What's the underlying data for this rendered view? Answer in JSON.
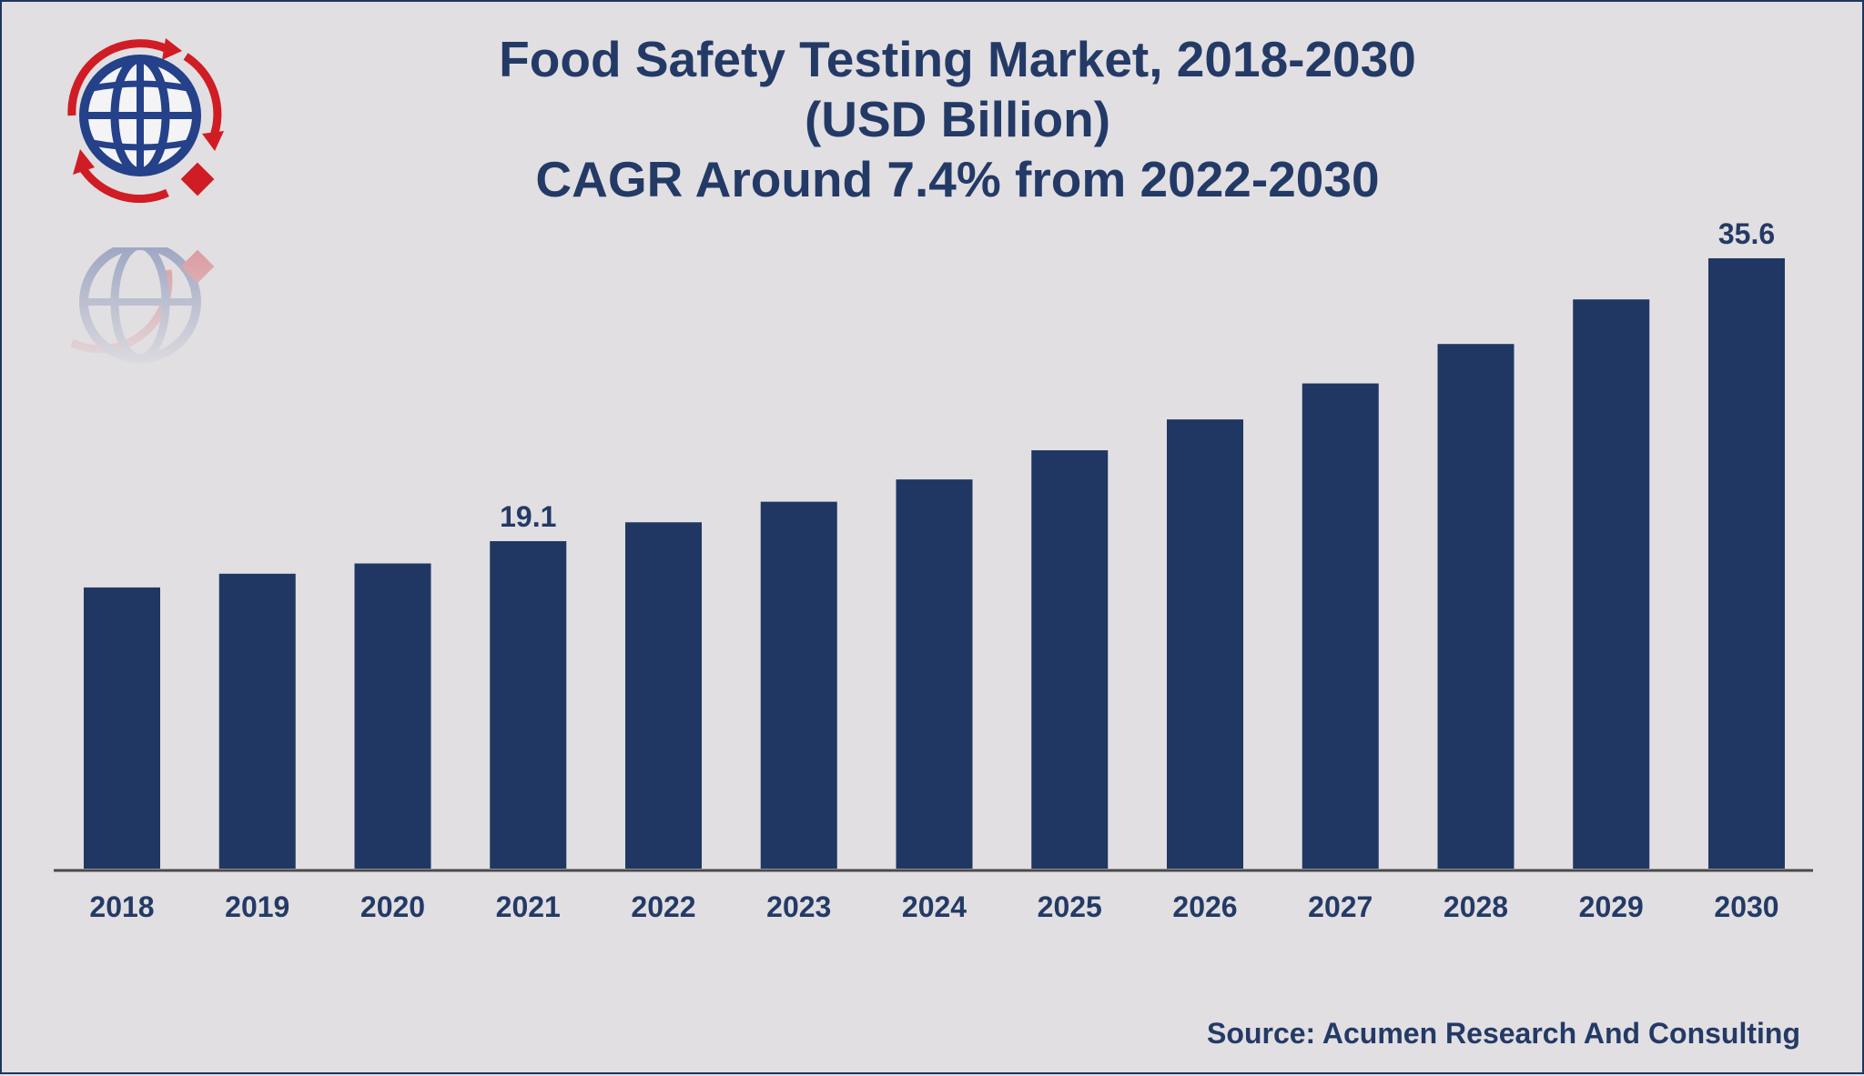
{
  "title": {
    "line1": "Food Safety Testing Market, 2018-2030",
    "line2": "(USD Billion)",
    "line3": "CAGR Around 7.4% from 2022-2030"
  },
  "source": "Source: Acumen Research And Consulting",
  "colors": {
    "bar": "#203763",
    "text": "#243a66",
    "background": "#e1dfe2",
    "logo_red": "#d01c24",
    "logo_blue": "#24418a"
  },
  "logo": {
    "icon": "globe-logo-icon"
  },
  "chart_data": {
    "type": "bar",
    "title": "Food Safety Testing Market, 2018-2030",
    "ylabel": "",
    "xlabel": "",
    "categories": [
      "2018",
      "2019",
      "2020",
      "2021",
      "2022",
      "2023",
      "2024",
      "2025",
      "2026",
      "2027",
      "2028",
      "2029",
      "2030"
    ],
    "values": [
      16.4,
      17.2,
      17.8,
      19.1,
      20.2,
      21.4,
      22.7,
      24.4,
      26.2,
      28.3,
      30.6,
      33.2,
      35.6
    ],
    "data_labels": [
      {
        "index": 3,
        "text": "19.1"
      },
      {
        "index": 12,
        "text": "35.6"
      }
    ],
    "ylim": [
      0,
      36.5
    ],
    "grid": false,
    "legend": "none"
  }
}
